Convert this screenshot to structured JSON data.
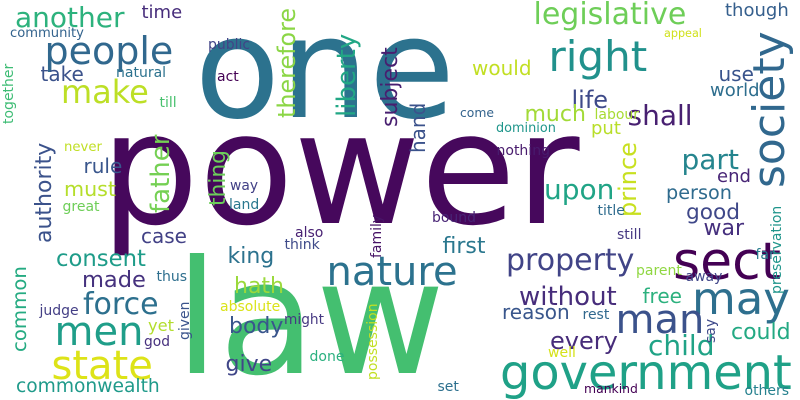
{
  "background": "#ffffff",
  "words": [
    {
      "text": "power",
      "color": "#46085c",
      "vertical": false
    },
    {
      "text": "one",
      "color": "#2c728e",
      "vertical": false
    },
    {
      "text": "law",
      "color": "#44bf70",
      "vertical": false
    },
    {
      "text": "nature",
      "color": "#2c728e",
      "vertical": false
    },
    {
      "text": "government",
      "color": "#1fa187",
      "vertical": false
    },
    {
      "text": "people",
      "color": "#31688e",
      "vertical": false
    },
    {
      "text": "right",
      "color": "#21918c",
      "vertical": false
    },
    {
      "text": "men",
      "color": "#1f9e89",
      "vertical": false
    },
    {
      "text": "state",
      "color": "#dde318",
      "vertical": false
    },
    {
      "text": "make",
      "color": "#bddf26",
      "vertical": false
    },
    {
      "text": "sect",
      "color": "#440154",
      "vertical": false
    },
    {
      "text": "may",
      "color": "#2e6f8e",
      "vertical": false
    },
    {
      "text": "man",
      "color": "#3b528b",
      "vertical": false
    },
    {
      "text": "society",
      "color": "#31688e",
      "vertical": true
    },
    {
      "text": "legislative",
      "color": "#6ece58",
      "vertical": false
    },
    {
      "text": "another",
      "color": "#2db27d",
      "vertical": false
    },
    {
      "text": "property",
      "color": "#414487",
      "vertical": false
    },
    {
      "text": "without",
      "color": "#472d7b",
      "vertical": false
    },
    {
      "text": "every",
      "color": "#472c7a",
      "vertical": false
    },
    {
      "text": "child",
      "color": "#20a386",
      "vertical": false
    },
    {
      "text": "force",
      "color": "#2d708e",
      "vertical": false
    },
    {
      "text": "consent",
      "color": "#1e9c89",
      "vertical": false
    },
    {
      "text": "commonwealth",
      "color": "#1f9a8a",
      "vertical": false
    },
    {
      "text": "made",
      "color": "#46327e",
      "vertical": false
    },
    {
      "text": "upon",
      "color": "#20a486",
      "vertical": false
    },
    {
      "text": "part",
      "color": "#25858e",
      "vertical": false
    },
    {
      "text": "life",
      "color": "#3e4a89",
      "vertical": false
    },
    {
      "text": "shall",
      "color": "#482071",
      "vertical": false
    },
    {
      "text": "good",
      "color": "#3f4889",
      "vertical": false
    },
    {
      "text": "liberty",
      "color": "#22a785",
      "vertical": true
    },
    {
      "text": "father",
      "color": "#75d054",
      "vertical": true
    },
    {
      "text": "authority",
      "color": "#3b528b",
      "vertical": true
    },
    {
      "text": "common",
      "color": "#25ab82",
      "vertical": true
    },
    {
      "text": "subject",
      "color": "#481f70",
      "vertical": true
    },
    {
      "text": "therefore",
      "color": "#8bd646",
      "vertical": true
    },
    {
      "text": "prince",
      "color": "#c8e020",
      "vertical": true
    },
    {
      "text": "much",
      "color": "#a2da37",
      "vertical": false
    },
    {
      "text": "would",
      "color": "#c2df23",
      "vertical": false
    },
    {
      "text": "must",
      "color": "#b5de2b",
      "vertical": false
    },
    {
      "text": "rule",
      "color": "#39568c",
      "vertical": false
    },
    {
      "text": "take",
      "color": "#3b528b",
      "vertical": false
    },
    {
      "text": "hand",
      "color": "#3b528b",
      "vertical": true
    },
    {
      "text": "thing",
      "color": "#6ccd5a",
      "vertical": true
    },
    {
      "text": "case",
      "color": "#424186",
      "vertical": false
    },
    {
      "text": "king",
      "color": "#2c728e",
      "vertical": false
    },
    {
      "text": "hath",
      "color": "#9bd93c",
      "vertical": false
    },
    {
      "text": "first",
      "color": "#2a778e",
      "vertical": false
    },
    {
      "text": "reason",
      "color": "#39568c",
      "vertical": false
    },
    {
      "text": "free",
      "color": "#2cb17e",
      "vertical": false
    },
    {
      "text": "body",
      "color": "#39558c",
      "vertical": false
    },
    {
      "text": "give",
      "color": "#404688",
      "vertical": false
    },
    {
      "text": "yet",
      "color": "#b2dd2d",
      "vertical": false
    },
    {
      "text": "war",
      "color": "#46307e",
      "vertical": false
    },
    {
      "text": "end",
      "color": "#482576",
      "vertical": false
    },
    {
      "text": "person",
      "color": "#2f6b8e",
      "vertical": false
    },
    {
      "text": "could",
      "color": "#23a983",
      "vertical": false
    },
    {
      "text": "put",
      "color": "#b8de29",
      "vertical": false
    },
    {
      "text": "use",
      "color": "#3a548c",
      "vertical": false
    },
    {
      "text": "world",
      "color": "#2e6e8e",
      "vertical": false
    },
    {
      "text": "though",
      "color": "#355f8d",
      "vertical": false
    },
    {
      "text": "time",
      "color": "#472d7b",
      "vertical": false
    },
    {
      "text": "community",
      "color": "#33638d",
      "vertical": false
    },
    {
      "text": "public",
      "color": "#414487",
      "vertical": false
    },
    {
      "text": "natural",
      "color": "#2c728e",
      "vertical": false
    },
    {
      "text": "act",
      "color": "#440154",
      "vertical": false
    },
    {
      "text": "till",
      "color": "#48c16e",
      "vertical": false
    },
    {
      "text": "together",
      "color": "#3dbc74",
      "vertical": true
    },
    {
      "text": "never",
      "color": "#c0df25",
      "vertical": false
    },
    {
      "text": "great",
      "color": "#6ece58",
      "vertical": false
    },
    {
      "text": "way",
      "color": "#424086",
      "vertical": false
    },
    {
      "text": "land",
      "color": "#2a788e",
      "vertical": false
    },
    {
      "text": "nothing",
      "color": "#481b6d",
      "vertical": false
    },
    {
      "text": "come",
      "color": "#33638d",
      "vertical": false
    },
    {
      "text": "dominion",
      "color": "#1f968b",
      "vertical": false
    },
    {
      "text": "labour",
      "color": "#a8db34",
      "vertical": false
    },
    {
      "text": "appeal",
      "color": "#d0e11c",
      "vertical": false
    },
    {
      "text": "title",
      "color": "#2f6c8e",
      "vertical": false
    },
    {
      "text": "bound",
      "color": "#482475",
      "vertical": false
    },
    {
      "text": "still",
      "color": "#453781",
      "vertical": false
    },
    {
      "text": "far",
      "color": "#287c8e",
      "vertical": false
    },
    {
      "text": "also",
      "color": "#482173",
      "vertical": false
    },
    {
      "text": "think",
      "color": "#3e4a89",
      "vertical": false
    },
    {
      "text": "family",
      "color": "#481467",
      "vertical": true
    },
    {
      "text": "parent",
      "color": "#90d743",
      "vertical": false
    },
    {
      "text": "away",
      "color": "#404588",
      "vertical": false
    },
    {
      "text": "preservation",
      "color": "#1f958b",
      "vertical": true
    },
    {
      "text": "thus",
      "color": "#2e6f8e",
      "vertical": false
    },
    {
      "text": "absolute",
      "color": "#dae319",
      "vertical": false
    },
    {
      "text": "judge",
      "color": "#433e85",
      "vertical": false
    },
    {
      "text": "god",
      "color": "#46307e",
      "vertical": false
    },
    {
      "text": "given",
      "color": "#3a548c",
      "vertical": true
    },
    {
      "text": "might",
      "color": "#453882",
      "vertical": false
    },
    {
      "text": "done",
      "color": "#2ab07f",
      "vertical": false
    },
    {
      "text": "possession",
      "color": "#c2df23",
      "vertical": true
    },
    {
      "text": "rest",
      "color": "#31688e",
      "vertical": false
    },
    {
      "text": "well",
      "color": "#d5e21a",
      "vertical": false
    },
    {
      "text": "say",
      "color": "#3e4989",
      "vertical": true
    },
    {
      "text": "set",
      "color": "#2d708e",
      "vertical": false
    },
    {
      "text": "mankind",
      "color": "#440154",
      "vertical": false
    },
    {
      "text": "others",
      "color": "#26818e",
      "vertical": false
    }
  ]
}
